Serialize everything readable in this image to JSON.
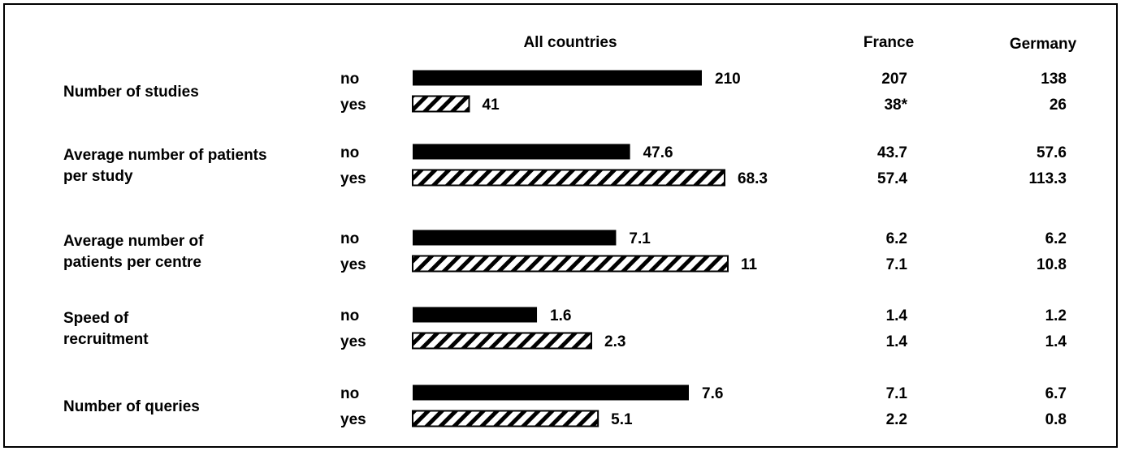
{
  "chart_data": {
    "type": "bar",
    "column_headers": {
      "all": "All countries",
      "france": "France",
      "germany": "Germany"
    },
    "series": [
      {
        "name": "no",
        "fill": "solid",
        "color": "#000000"
      },
      {
        "name": "yes",
        "fill": "hatched",
        "color": "#000000"
      }
    ],
    "groups": [
      {
        "label_lines": [
          "Number of studies"
        ],
        "rows": [
          {
            "series": "no",
            "all": 210,
            "all_label": "210",
            "france": "207",
            "germany": "138"
          },
          {
            "series": "yes",
            "all": 41,
            "all_label": "41",
            "france": "38*",
            "germany": "26"
          }
        ]
      },
      {
        "label_lines": [
          "Average number of patients",
          "per study"
        ],
        "rows": [
          {
            "series": "no",
            "all": 47.6,
            "all_label": "47.6",
            "france": "43.7",
            "germany": "57.6"
          },
          {
            "series": "yes",
            "all": 68.3,
            "all_label": "68.3",
            "france": "57.4",
            "germany": "113.3"
          }
        ]
      },
      {
        "label_lines": [
          "Average number of",
          "patients per centre"
        ],
        "rows": [
          {
            "series": "no",
            "all": 7.1,
            "all_label": "7.1",
            "france": "6.2",
            "germany": "6.2"
          },
          {
            "series": "yes",
            "all": 11,
            "all_label": "11",
            "france": "7.1",
            "germany": "10.8"
          }
        ]
      },
      {
        "label_lines": [
          "Speed of",
          "recruitment"
        ],
        "rows": [
          {
            "series": "no",
            "all": 1.6,
            "all_label": "1.6",
            "france": "1.4",
            "germany": "1.2"
          },
          {
            "series": "yes",
            "all": 2.3,
            "all_label": "2.3",
            "france": "1.4",
            "germany": "1.4"
          }
        ]
      },
      {
        "label_lines": [
          "Number of queries"
        ],
        "rows": [
          {
            "series": "no",
            "all": 7.6,
            "all_label": "7.6",
            "france": "7.1",
            "germany": "6.7"
          },
          {
            "series": "yes",
            "all": 5.1,
            "all_label": "5.1",
            "france": "2.2",
            "germany": "0.8"
          }
        ]
      }
    ],
    "axis": "none",
    "grid": false,
    "note": "Bars scaled per metric group (each group has its own scale)."
  }
}
